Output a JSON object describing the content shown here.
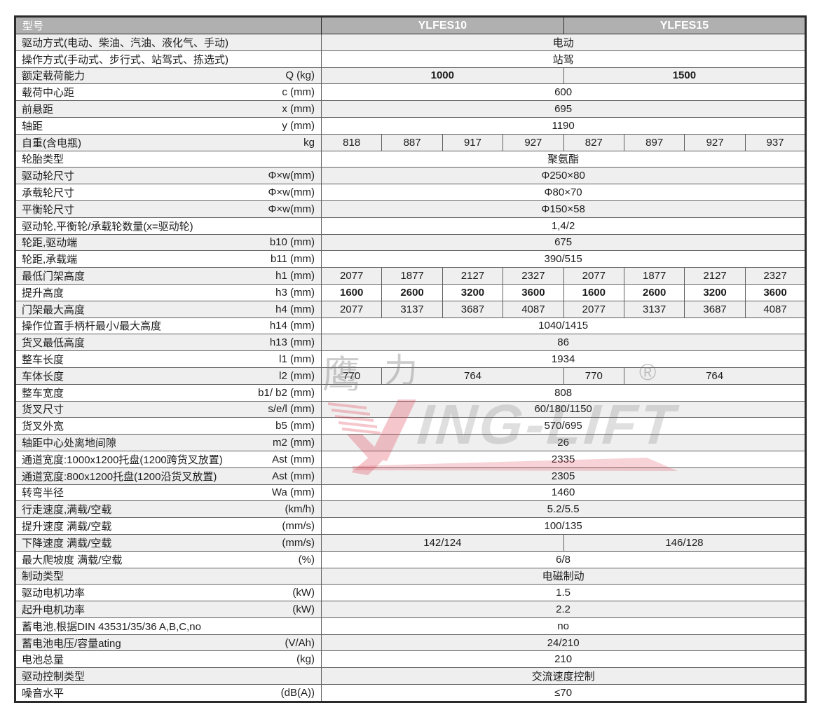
{
  "table": {
    "header": {
      "label": "型号",
      "models": [
        "YLFES10",
        "YLFES15"
      ]
    },
    "rows": [
      {
        "label": "驱动方式(电动、柴油、汽油、液化气、手动)",
        "sym": "",
        "cells": [
          {
            "t": "电动",
            "span": 8
          }
        ]
      },
      {
        "label": "操作方式(手动式、步行式、站驾式、拣选式)",
        "sym": "",
        "cells": [
          {
            "t": "站驾",
            "span": 8
          }
        ]
      },
      {
        "label": "额定载荷能力",
        "sym": "Q (kg)",
        "cells": [
          {
            "t": "1000",
            "span": 4,
            "b": true
          },
          {
            "t": "1500",
            "span": 4,
            "b": true
          }
        ]
      },
      {
        "label": "载荷中心距",
        "sym": "c (mm)",
        "cells": [
          {
            "t": "600",
            "span": 8
          }
        ]
      },
      {
        "label": "前悬距",
        "sym": "x (mm)",
        "cells": [
          {
            "t": "695",
            "span": 8
          }
        ]
      },
      {
        "label": "轴距",
        "sym": "y (mm)",
        "cells": [
          {
            "t": "1190",
            "span": 8
          }
        ]
      },
      {
        "label": "自重(含电瓶)",
        "sym": "kg",
        "cells": [
          {
            "t": "818",
            "span": 1
          },
          {
            "t": "887",
            "span": 1
          },
          {
            "t": "917",
            "span": 1
          },
          {
            "t": "927",
            "span": 1
          },
          {
            "t": "827",
            "span": 1
          },
          {
            "t": "897",
            "span": 1
          },
          {
            "t": "927",
            "span": 1
          },
          {
            "t": "937",
            "span": 1
          }
        ]
      },
      {
        "label": "轮胎类型",
        "sym": "",
        "cells": [
          {
            "t": "聚氨酯",
            "span": 8
          }
        ]
      },
      {
        "label": "驱动轮尺寸",
        "sym": "Φ×w(mm)",
        "cells": [
          {
            "t": "Φ250×80",
            "span": 8
          }
        ]
      },
      {
        "label": "承载轮尺寸",
        "sym": "Φ×w(mm)",
        "cells": [
          {
            "t": "Φ80×70",
            "span": 8
          }
        ]
      },
      {
        "label": "平衡轮尺寸",
        "sym": "Φ×w(mm)",
        "cells": [
          {
            "t": "Φ150×58",
            "span": 8
          }
        ]
      },
      {
        "label": "驱动轮,平衡轮/承载轮数量(x=驱动轮)",
        "sym": "",
        "cells": [
          {
            "t": "1,4/2",
            "span": 8
          }
        ]
      },
      {
        "label": "轮距,驱动端",
        "sym": "b10 (mm)",
        "cells": [
          {
            "t": "675",
            "span": 8
          }
        ]
      },
      {
        "label": "轮距,承载端",
        "sym": "b11 (mm)",
        "cells": [
          {
            "t": "390/515",
            "span": 8
          }
        ]
      },
      {
        "label": "最低门架高度",
        "sym": "h1 (mm)",
        "cells": [
          {
            "t": "2077",
            "span": 1
          },
          {
            "t": "1877",
            "span": 1
          },
          {
            "t": "2127",
            "span": 1
          },
          {
            "t": "2327",
            "span": 1
          },
          {
            "t": "2077",
            "span": 1
          },
          {
            "t": "1877",
            "span": 1
          },
          {
            "t": "2127",
            "span": 1
          },
          {
            "t": "2327",
            "span": 1
          }
        ]
      },
      {
        "label": "提升高度",
        "sym": "h3 (mm)",
        "cells": [
          {
            "t": "1600",
            "span": 1,
            "b": true
          },
          {
            "t": "2600",
            "span": 1,
            "b": true
          },
          {
            "t": "3200",
            "span": 1,
            "b": true
          },
          {
            "t": "3600",
            "span": 1,
            "b": true
          },
          {
            "t": "1600",
            "span": 1,
            "b": true
          },
          {
            "t": "2600",
            "span": 1,
            "b": true
          },
          {
            "t": "3200",
            "span": 1,
            "b": true
          },
          {
            "t": "3600",
            "span": 1,
            "b": true
          }
        ]
      },
      {
        "label": "门架最大高度",
        "sym": "h4 (mm)",
        "cells": [
          {
            "t": "2077",
            "span": 1
          },
          {
            "t": "3137",
            "span": 1
          },
          {
            "t": "3687",
            "span": 1
          },
          {
            "t": "4087",
            "span": 1
          },
          {
            "t": "2077",
            "span": 1
          },
          {
            "t": "3137",
            "span": 1
          },
          {
            "t": "3687",
            "span": 1
          },
          {
            "t": "4087",
            "span": 1
          }
        ]
      },
      {
        "label": "操作位置手柄杆最小/最大高度",
        "sym": "h14 (mm)",
        "cells": [
          {
            "t": "1040/1415",
            "span": 8
          }
        ]
      },
      {
        "label": "货叉最低高度",
        "sym": "h13 (mm)",
        "cells": [
          {
            "t": "86",
            "span": 8
          }
        ]
      },
      {
        "label": "整车长度",
        "sym": "l1 (mm)",
        "cells": [
          {
            "t": "1934",
            "span": 8
          }
        ]
      },
      {
        "label": "车体长度",
        "sym": "l2 (mm)",
        "cells": [
          {
            "t": "770",
            "span": 1
          },
          {
            "t": "764",
            "span": 3
          },
          {
            "t": "770",
            "span": 1
          },
          {
            "t": "764",
            "span": 3
          }
        ]
      },
      {
        "label": "整车宽度",
        "sym": "b1/ b2 (mm)",
        "cells": [
          {
            "t": "808",
            "span": 8
          }
        ]
      },
      {
        "label": "货叉尺寸",
        "sym": "s/e/l (mm)",
        "cells": [
          {
            "t": "60/180/1150",
            "span": 8
          }
        ]
      },
      {
        "label": "货叉外宽",
        "sym": "b5 (mm)",
        "cells": [
          {
            "t": "570/695",
            "span": 8
          }
        ]
      },
      {
        "label": "轴距中心处离地间隙",
        "sym": "m2 (mm)",
        "cells": [
          {
            "t": "26",
            "span": 8
          }
        ]
      },
      {
        "label": "通道宽度:1000x1200托盘(1200跨货叉放置)",
        "sym": "Ast (mm)",
        "cells": [
          {
            "t": "2335",
            "span": 8
          }
        ]
      },
      {
        "label": "通道宽度:800x1200托盘(1200沿货叉放置)",
        "sym": "Ast (mm)",
        "cells": [
          {
            "t": "2305",
            "span": 8
          }
        ]
      },
      {
        "label": "转弯半径",
        "sym": "Wa (mm)",
        "cells": [
          {
            "t": "1460",
            "span": 8
          }
        ]
      },
      {
        "label": "行走速度,满载/空载",
        "sym": "(km/h)",
        "cells": [
          {
            "t": "5.2/5.5",
            "span": 8
          }
        ]
      },
      {
        "label": "提升速度 满载/空载",
        "sym": "(mm/s)",
        "cells": [
          {
            "t": "100/135",
            "span": 8
          }
        ]
      },
      {
        "label": "下降速度 满载/空载",
        "sym": "(mm/s)",
        "cells": [
          {
            "t": "142/124",
            "span": 4
          },
          {
            "t": "146/128",
            "span": 4
          }
        ]
      },
      {
        "label": "最大爬坡度 满载/空载",
        "sym": "(%)",
        "cells": [
          {
            "t": "6/8",
            "span": 8
          }
        ]
      },
      {
        "label": "制动类型",
        "sym": "",
        "cells": [
          {
            "t": "电磁制动",
            "span": 8
          }
        ]
      },
      {
        "label": "驱动电机功率",
        "sym": "(kW)",
        "cells": [
          {
            "t": "1.5",
            "span": 8
          }
        ]
      },
      {
        "label": "起升电机功率",
        "sym": "(kW)",
        "cells": [
          {
            "t": "2.2",
            "span": 8
          }
        ]
      },
      {
        "label": "蓄电池,根据DIN 43531/35/36 A,B,C,no",
        "sym": "",
        "cells": [
          {
            "t": "no",
            "span": 8
          }
        ]
      },
      {
        "label": "蓄电池电压/容量ating",
        "sym": "(V/Ah)",
        "cells": [
          {
            "t": "24/210",
            "span": 8
          }
        ]
      },
      {
        "label": "电池总量",
        "sym": "(kg)",
        "cells": [
          {
            "t": "210",
            "span": 8
          }
        ]
      },
      {
        "label": "驱动控制类型",
        "sym": "",
        "cells": [
          {
            "t": "交流速度控制",
            "span": 8
          }
        ]
      },
      {
        "label": "噪音水平",
        "sym": "(dB(A))",
        "cells": [
          {
            "t": "≤70",
            "span": 8
          }
        ]
      }
    ]
  },
  "watermark": {
    "cn1": "鹰",
    "cn2": "力",
    "latin": "ING-LIFT",
    "reg": "®",
    "red": "#e04a5c",
    "gray": "#8c8c8c"
  },
  "colors": {
    "header_bg": "#b0b0b0",
    "header_text": "#ffffff",
    "row_alt": "#efefef",
    "border": "#5f5f5f",
    "text": "#1d1d1d"
  }
}
